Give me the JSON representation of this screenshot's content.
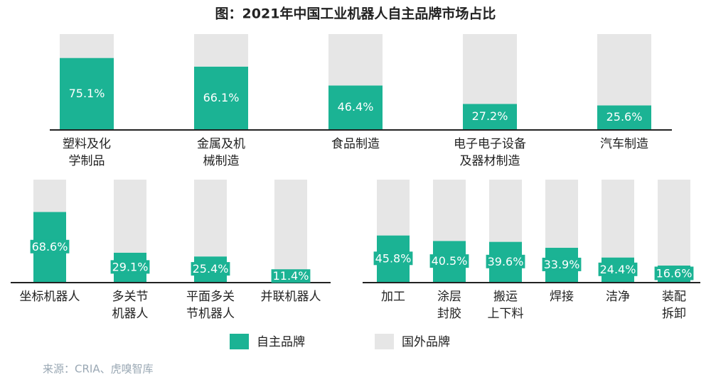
{
  "title": "图：2021年中国工业机器人自主品牌市场占比",
  "source": "来源：CRIA、虎嗅智库",
  "legend": [
    {
      "name": "自主品牌",
      "color": "#1bb394"
    },
    {
      "name": "国外品牌",
      "color": "#e6e6e6"
    }
  ],
  "chart_data": [
    {
      "type": "bar",
      "stacked": true,
      "ylim": [
        0,
        100
      ],
      "categories": [
        [
          "塑料及化",
          "学制品"
        ],
        [
          "金属及机",
          "械制造"
        ],
        [
          "食品制造"
        ],
        [
          "电子电子设备",
          "及器材制造"
        ],
        [
          "汽车制造"
        ]
      ],
      "series": [
        {
          "values": [
            75.1,
            66.1,
            46.4,
            27.2,
            25.6
          ],
          "value_labels": [
            "75.1%",
            "66.1%",
            "46.4%",
            "27.2%",
            "25.6%"
          ]
        },
        {
          "values": [
            24.9,
            33.9,
            53.6,
            72.8,
            74.4
          ]
        }
      ]
    },
    {
      "type": "bar",
      "stacked": true,
      "ylim": [
        0,
        100
      ],
      "categories": [
        [
          "坐标机器人"
        ],
        [
          "多关节",
          "机器人"
        ],
        [
          "平面多关",
          "节机器人"
        ],
        [
          "并联机器人"
        ]
      ],
      "series": [
        {
          "values": [
            68.6,
            29.1,
            25.4,
            11.4
          ],
          "value_labels": [
            "68.6%",
            "29.1%",
            "25.4%",
            "11.4%"
          ]
        },
        {
          "values": [
            31.4,
            70.9,
            74.6,
            88.6
          ]
        }
      ]
    },
    {
      "type": "bar",
      "stacked": true,
      "ylim": [
        0,
        100
      ],
      "categories": [
        [
          "加工"
        ],
        [
          "涂层",
          "封胶"
        ],
        [
          "搬运",
          "上下料"
        ],
        [
          "焊接"
        ],
        [
          "洁净"
        ],
        [
          "装配",
          "拆卸"
        ]
      ],
      "series": [
        {
          "values": [
            45.8,
            40.5,
            39.6,
            33.9,
            24.4,
            16.6
          ],
          "value_labels": [
            "45.8%",
            "40.5%",
            "39.6%",
            "33.9%",
            "24.4%",
            "16.6%"
          ]
        },
        {
          "values": [
            54.2,
            59.5,
            60.4,
            66.1,
            75.6,
            83.4
          ]
        }
      ]
    }
  ]
}
